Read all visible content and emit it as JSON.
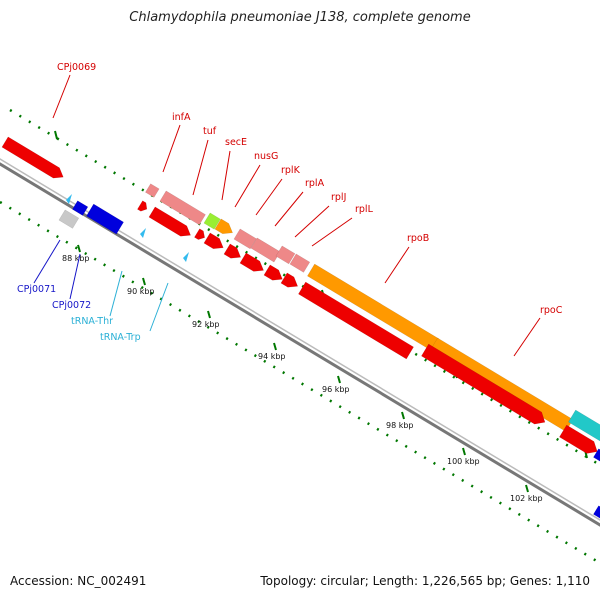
{
  "title": "Chlamydophila pneumoniae J138, complete genome",
  "footer": {
    "accession": "Accession: NC_002491",
    "summary": "Topology: circular; Length: 1,226,565 bp; Genes: 1,110"
  },
  "scale_ticks": [
    "88 kbp",
    "90 kbp",
    "92 kbp",
    "94 kbp",
    "96 kbp",
    "98 kbp",
    "100 kbp",
    "102 kbp"
  ],
  "gene_labels": [
    {
      "text": "CPj0069",
      "color": "red"
    },
    {
      "text": "infA",
      "color": "red"
    },
    {
      "text": "tuf",
      "color": "red"
    },
    {
      "text": "secE",
      "color": "red"
    },
    {
      "text": "nusG",
      "color": "red"
    },
    {
      "text": "rplK",
      "color": "red"
    },
    {
      "text": "rplA",
      "color": "red"
    },
    {
      "text": "rplJ",
      "color": "red"
    },
    {
      "text": "rplL",
      "color": "red"
    },
    {
      "text": "rpoB",
      "color": "red"
    },
    {
      "text": "rpoC",
      "color": "red"
    },
    {
      "text": "CPj0071",
      "color": "blue"
    },
    {
      "text": "CPj0072",
      "color": "blue"
    },
    {
      "text": "tRNA-Thr",
      "color": "cyan"
    },
    {
      "text": "tRNA-Trp",
      "color": "cyan"
    }
  ],
  "colors": {
    "forward_gene": "#ee0000",
    "light_gene": "#ee8888",
    "orange_gene": "#ff9900",
    "green_gene": "#99ee33",
    "teal_gene": "#22c8c8",
    "blue_gene": "#0000dd",
    "trna": "#33bbee",
    "backbone": "#888888",
    "ticks": "#007700"
  }
}
